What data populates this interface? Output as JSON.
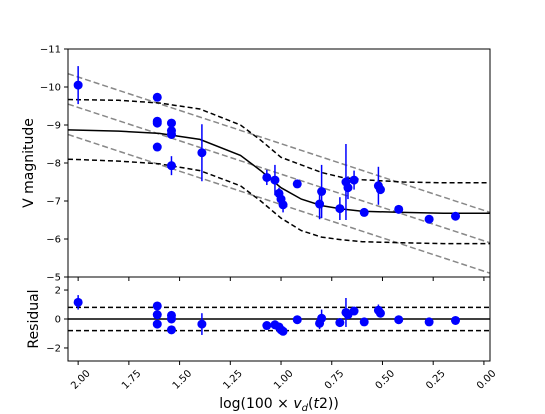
{
  "chart_data": [
    {
      "type": "scatter",
      "panel": "main",
      "title": "",
      "ylabel": "V magnitude",
      "xlim": [
        2.05,
        -0.03
      ],
      "ylim": [
        -5,
        -11
      ],
      "x_ticks": [
        "2.00",
        "1.75",
        "1.50",
        "1.25",
        "1.00",
        "0.75",
        "0.50",
        "0.25",
        "0.00"
      ],
      "y_ticks": [
        "−11",
        "−10",
        "−9",
        "−8",
        "−7",
        "−6",
        "−5"
      ],
      "grid": false,
      "point_color": "#0000ff",
      "points": [
        {
          "x": 2.0,
          "y": -10.05,
          "err": 0.5
        },
        {
          "x": 1.61,
          "y": -9.73,
          "err": 0
        },
        {
          "x": 1.61,
          "y": -9.1,
          "err": 0
        },
        {
          "x": 1.61,
          "y": -9.05,
          "err": 0
        },
        {
          "x": 1.61,
          "y": -8.42,
          "err": 0
        },
        {
          "x": 1.54,
          "y": -9.05,
          "err": 0
        },
        {
          "x": 1.54,
          "y": -8.85,
          "err": 0
        },
        {
          "x": 1.54,
          "y": -8.75,
          "err": 0
        },
        {
          "x": 1.54,
          "y": -7.93,
          "err": 0.25
        },
        {
          "x": 1.39,
          "y": -8.27,
          "err": 0.75
        },
        {
          "x": 1.07,
          "y": -7.62,
          "err": 0.2
        },
        {
          "x": 1.03,
          "y": -7.55,
          "err": 0.4
        },
        {
          "x": 1.01,
          "y": -7.2,
          "err": 0.15
        },
        {
          "x": 1.0,
          "y": -7.05,
          "err": 0.2
        },
        {
          "x": 0.99,
          "y": -6.9,
          "err": 0.2
        },
        {
          "x": 0.92,
          "y": -7.45,
          "err": 0
        },
        {
          "x": 0.81,
          "y": -6.92,
          "err": 0.4
        },
        {
          "x": 0.8,
          "y": -7.25,
          "err": 0.7
        },
        {
          "x": 0.71,
          "y": -6.8,
          "err": 0.3
        },
        {
          "x": 0.68,
          "y": -7.5,
          "err": 1.0
        },
        {
          "x": 0.67,
          "y": -7.35,
          "err": 0.3
        },
        {
          "x": 0.64,
          "y": -7.55,
          "err": 0.25
        },
        {
          "x": 0.59,
          "y": -6.7,
          "err": 0
        },
        {
          "x": 0.52,
          "y": -7.4,
          "err": 0.5
        },
        {
          "x": 0.51,
          "y": -7.3,
          "err": 0
        },
        {
          "x": 0.42,
          "y": -6.78,
          "err": 0
        },
        {
          "x": 0.27,
          "y": -6.52,
          "err": 0
        },
        {
          "x": 0.14,
          "y": -6.6,
          "err": 0
        }
      ],
      "fit_line": {
        "color": "#000000",
        "style": "solid",
        "x": [
          2.05,
          1.8,
          1.6,
          1.4,
          1.2,
          1.1,
          1.0,
          0.9,
          0.8,
          0.7,
          0.6,
          0.4,
          0.2,
          -0.03
        ],
        "y": [
          -8.87,
          -8.84,
          -8.78,
          -8.62,
          -8.2,
          -7.8,
          -7.35,
          -7.05,
          -6.88,
          -6.79,
          -6.73,
          -6.7,
          -6.68,
          -6.68
        ]
      },
      "fit_band_upper": {
        "color": "#000000",
        "style": "dashed",
        "x": [
          2.05,
          1.8,
          1.6,
          1.4,
          1.2,
          1.1,
          1.0,
          0.9,
          0.8,
          0.7,
          0.6,
          0.4,
          0.2,
          -0.03
        ],
        "y": [
          -9.67,
          -9.65,
          -9.58,
          -9.42,
          -9.0,
          -8.6,
          -8.15,
          -7.95,
          -7.75,
          -7.62,
          -7.56,
          -7.5,
          -7.48,
          -7.48
        ]
      },
      "fit_band_lower": {
        "color": "#000000",
        "style": "dashed",
        "x": [
          2.05,
          1.8,
          1.6,
          1.4,
          1.2,
          1.1,
          1.0,
          0.9,
          0.8,
          0.7,
          0.6,
          0.4,
          0.2,
          -0.03
        ],
        "y": [
          -8.1,
          -8.05,
          -7.98,
          -7.8,
          -7.4,
          -7.0,
          -6.55,
          -6.22,
          -6.05,
          -5.98,
          -5.93,
          -5.9,
          -5.88,
          -5.88
        ]
      },
      "linear_fits": {
        "color": "#888888",
        "style": "dashed",
        "lines": [
          {
            "x": [
              2.05,
              -0.03
            ],
            "y": [
              -10.35,
              -6.7
            ]
          },
          {
            "x": [
              2.05,
              -0.03
            ],
            "y": [
              -9.55,
              -5.9
            ]
          },
          {
            "x": [
              2.05,
              -0.03
            ],
            "y": [
              -8.75,
              -5.1
            ]
          }
        ]
      }
    },
    {
      "type": "scatter",
      "panel": "residual",
      "xlabel": "log(100 × v_d(t2))",
      "ylabel": "Residual",
      "xlim": [
        2.05,
        -0.03
      ],
      "ylim": [
        -2.9,
        2.9
      ],
      "x_ticks": [
        "2.00",
        "1.75",
        "1.50",
        "1.25",
        "1.00",
        "0.75",
        "0.50",
        "0.25",
        "0.00"
      ],
      "y_ticks": [
        "2",
        "0",
        "−2"
      ],
      "zero_line": {
        "color": "#000000",
        "style": "solid",
        "y": 0
      },
      "band_lines": {
        "color": "#000000",
        "style": "dashed",
        "y": [
          0.8,
          -0.8
        ]
      },
      "point_color": "#0000ff",
      "points": [
        {
          "x": 2.0,
          "y": 1.15,
          "err": 0.5
        },
        {
          "x": 1.61,
          "y": 0.9,
          "err": 0
        },
        {
          "x": 1.61,
          "y": 0.3,
          "err": 0
        },
        {
          "x": 1.61,
          "y": -0.35,
          "err": 0
        },
        {
          "x": 1.54,
          "y": 0.25,
          "err": 0
        },
        {
          "x": 1.54,
          "y": 0.0,
          "err": 0
        },
        {
          "x": 1.54,
          "y": -0.75,
          "err": 0.25
        },
        {
          "x": 1.39,
          "y": -0.35,
          "err": 0.75
        },
        {
          "x": 1.07,
          "y": -0.45,
          "err": 0.2
        },
        {
          "x": 1.03,
          "y": -0.4,
          "err": 0.3
        },
        {
          "x": 1.01,
          "y": -0.55,
          "err": 0.15
        },
        {
          "x": 1.0,
          "y": -0.75,
          "err": 0.2
        },
        {
          "x": 0.99,
          "y": -0.85,
          "err": 0.2
        },
        {
          "x": 0.92,
          "y": -0.05,
          "err": 0
        },
        {
          "x": 0.81,
          "y": -0.3,
          "err": 0.4
        },
        {
          "x": 0.8,
          "y": 0.05,
          "err": 0.6
        },
        {
          "x": 0.71,
          "y": -0.25,
          "err": 0.3
        },
        {
          "x": 0.68,
          "y": 0.45,
          "err": 1.0
        },
        {
          "x": 0.67,
          "y": 0.3,
          "err": 0.3
        },
        {
          "x": 0.64,
          "y": 0.55,
          "err": 0.25
        },
        {
          "x": 0.59,
          "y": -0.2,
          "err": 0
        },
        {
          "x": 0.52,
          "y": 0.6,
          "err": 0.4
        },
        {
          "x": 0.51,
          "y": 0.4,
          "err": 0
        },
        {
          "x": 0.42,
          "y": -0.05,
          "err": 0
        },
        {
          "x": 0.27,
          "y": -0.2,
          "err": 0
        },
        {
          "x": 0.14,
          "y": -0.1,
          "err": 0
        }
      ]
    }
  ]
}
